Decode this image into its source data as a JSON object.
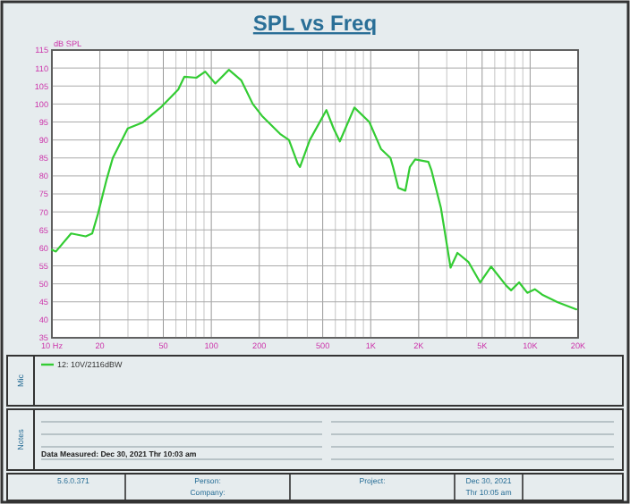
{
  "chart_data": {
    "type": "line",
    "title": "SPL vs Freq",
    "ylabel": "dB SPL",
    "log": "x",
    "grid": true,
    "legend": "bottom",
    "marker": "none",
    "line_style": "solid",
    "xlim": [
      10,
      20000
    ],
    "ylim": [
      35,
      115
    ],
    "xticks": [
      {
        "value": 10,
        "label": "10 Hz"
      },
      {
        "value": 20,
        "label": "20"
      },
      {
        "value": 30,
        "label": null
      },
      {
        "value": 40,
        "label": null
      },
      {
        "value": 50,
        "label": "50"
      },
      {
        "value": 60,
        "label": null
      },
      {
        "value": 70,
        "label": null
      },
      {
        "value": 80,
        "label": null
      },
      {
        "value": 90,
        "label": null
      },
      {
        "value": 100,
        "label": "100"
      },
      {
        "value": 200,
        "label": "200"
      },
      {
        "value": 300,
        "label": null
      },
      {
        "value": 400,
        "label": null
      },
      {
        "value": 500,
        "label": "500"
      },
      {
        "value": 600,
        "label": null
      },
      {
        "value": 700,
        "label": null
      },
      {
        "value": 800,
        "label": null
      },
      {
        "value": 900,
        "label": null
      },
      {
        "value": 1000,
        "label": "1K"
      },
      {
        "value": 2000,
        "label": "2K"
      },
      {
        "value": 3000,
        "label": null
      },
      {
        "value": 4000,
        "label": null
      },
      {
        "value": 5000,
        "label": "5K"
      },
      {
        "value": 6000,
        "label": null
      },
      {
        "value": 7000,
        "label": null
      },
      {
        "value": 8000,
        "label": null
      },
      {
        "value": 9000,
        "label": null
      },
      {
        "value": 10000,
        "label": "10K"
      },
      {
        "value": 20000,
        "label": "20K"
      }
    ],
    "yticks": [
      35,
      40,
      45,
      50,
      55,
      60,
      65,
      70,
      75,
      80,
      85,
      90,
      95,
      100,
      105,
      110,
      115
    ],
    "series": [
      {
        "name": "12: 10V/2116dBW",
        "color": "#33cc33",
        "x": [
          10,
          10.6,
          13.2,
          16.3,
          17.9,
          19.4,
          22.1,
          24.1,
          29.9,
          37.2,
          48,
          62,
          67.8,
          80.6,
          91.6,
          106,
          129,
          154,
          182,
          208,
          270,
          307,
          348,
          360,
          415,
          527,
          585,
          640,
          790,
          980,
          1160,
          1330,
          1380,
          1490,
          1650,
          1760,
          1900,
          2300,
          2400,
          2760,
          3170,
          3500,
          4100,
          4860,
          5690,
          7080,
          7600,
          8530,
          9600,
          10700,
          11900,
          14900,
          19500
        ],
        "values": [
          59.5,
          59,
          64,
          63.2,
          64,
          69.3,
          79.2,
          85,
          93.2,
          94.9,
          99,
          104,
          107.6,
          107.3,
          109,
          105.7,
          109.5,
          106.6,
          100,
          96.7,
          91.7,
          90,
          83.5,
          82.5,
          90,
          98.3,
          93.2,
          89.6,
          99,
          95,
          87.5,
          85,
          82.5,
          76.7,
          75.9,
          82.5,
          84.6,
          83.9,
          81.7,
          71,
          54.5,
          58.6,
          56.1,
          50.4,
          54.8,
          49.5,
          48.2,
          50.4,
          47.5,
          48.5,
          47,
          44.9,
          42.9
        ]
      }
    ],
    "annotations": [
      "Mic",
      "Notes",
      "Data Measured: Dec 30, 2021  Thr 10:03 am",
      "5.6.0.371",
      "Person:",
      "Company:",
      "Project:",
      "Dec 30, 2021",
      "Thr 10:05 am"
    ]
  }
}
